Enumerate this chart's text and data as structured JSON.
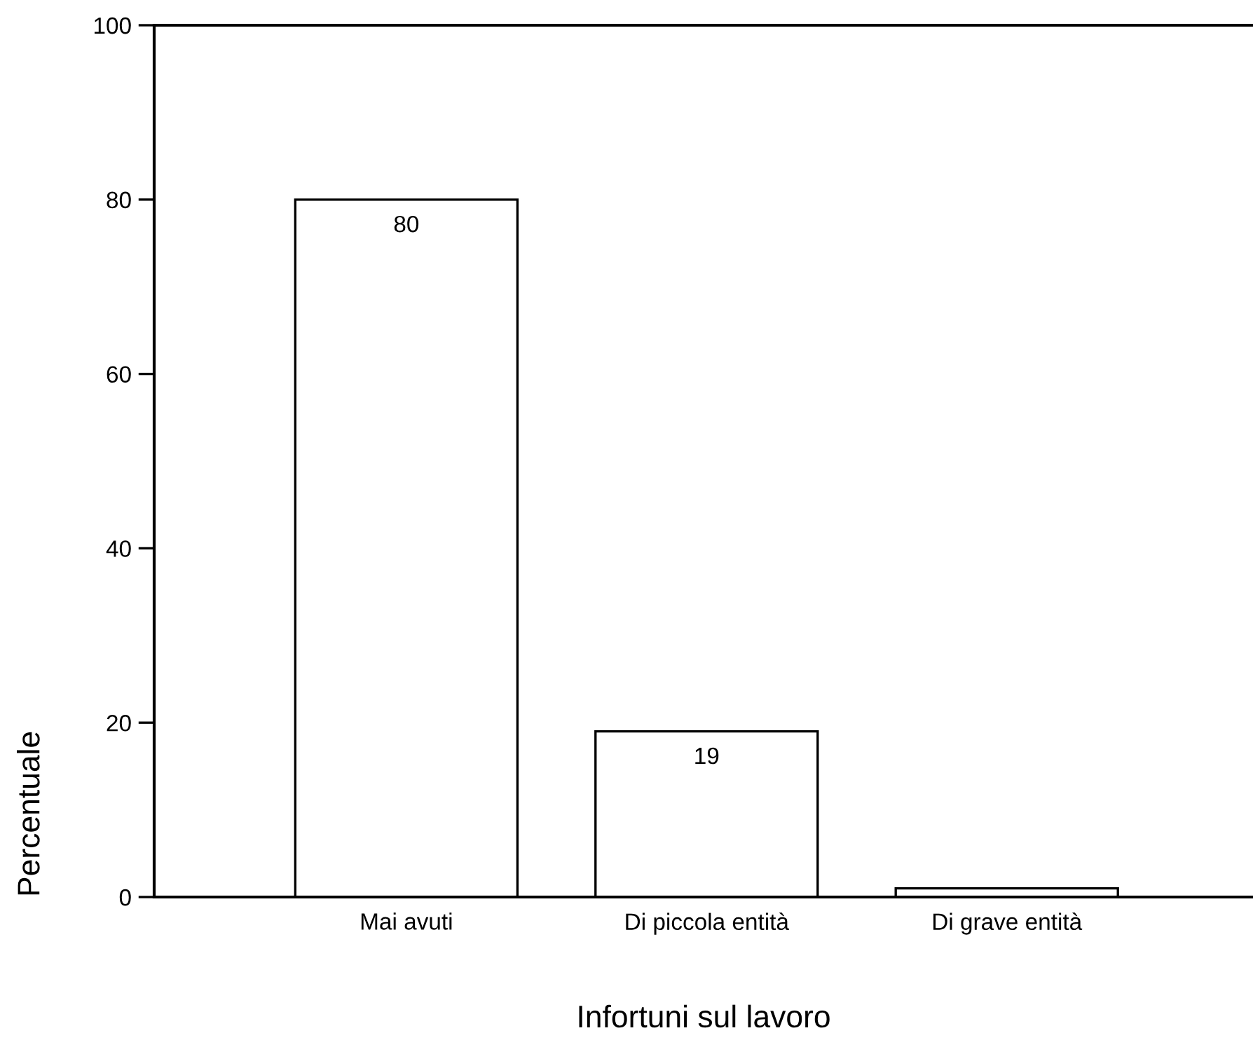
{
  "chart_data": {
    "type": "bar",
    "xlabel": "Infortuni sul lavoro",
    "ylabel": "Percentuale",
    "categories": [
      "Mai avuti",
      "Di piccola entità",
      "Di grave entità"
    ],
    "values": [
      80,
      19,
      1
    ],
    "value_labels": [
      "80",
      "19",
      null
    ],
    "color": "#ffffff",
    "ylim": [
      0,
      100
    ],
    "yticks": [
      0,
      20,
      40,
      60,
      80,
      100
    ],
    "grid": false
  }
}
